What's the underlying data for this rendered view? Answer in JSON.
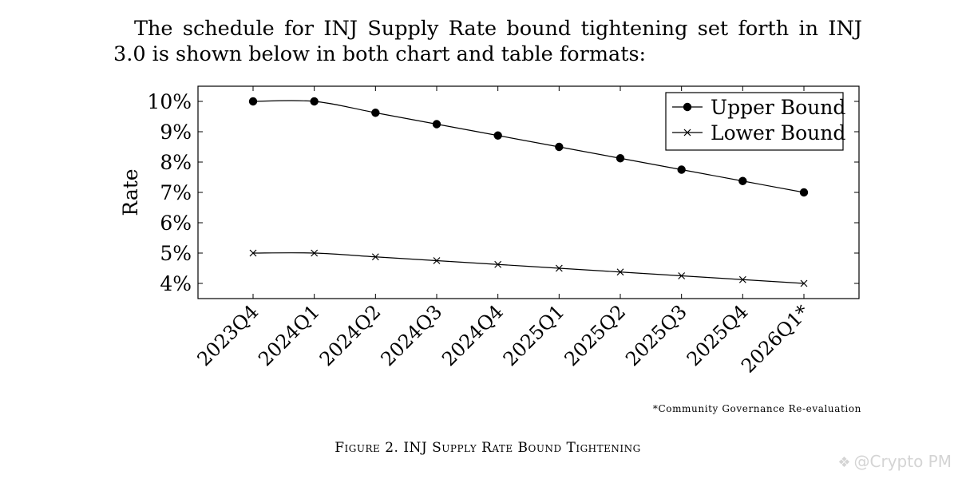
{
  "intro_text": "The schedule for INJ Supply Rate bound tightening set forth in INJ 3.0 is shown below in both chart and table formats:",
  "footnote": "*Community Governance Re-evaluation",
  "caption": "Figure 2. INJ Supply Rate Bound Tightening",
  "watermark": {
    "text": "@Crypto PM",
    "icon": "diamond-logo-icon"
  },
  "chart_data": {
    "type": "line",
    "title": "",
    "xlabel": "",
    "ylabel": "Rate",
    "categories": [
      "2023Q4",
      "2024Q1",
      "2024Q2",
      "2024Q3",
      "2024Q4",
      "2025Q1",
      "2025Q2",
      "2025Q3",
      "2025Q4",
      "2026Q1*"
    ],
    "ylim": [
      3.5,
      10.5
    ],
    "yticks": [
      4,
      5,
      6,
      7,
      8,
      9,
      10
    ],
    "ytick_labels": [
      "4%",
      "5%",
      "6%",
      "7%",
      "8%",
      "9%",
      "10%"
    ],
    "grid": false,
    "legend_position": "top-right",
    "series": [
      {
        "name": "Upper Bound",
        "marker": "filled-circle",
        "color": "#000000",
        "values": [
          10,
          10,
          9.625,
          9.25,
          8.875,
          8.5,
          8.125,
          7.75,
          7.375,
          7
        ]
      },
      {
        "name": "Lower Bound",
        "marker": "cross",
        "color": "#000000",
        "values": [
          5,
          5,
          4.875,
          4.75,
          4.625,
          4.5,
          4.375,
          4.25,
          4.125,
          4
        ]
      }
    ]
  }
}
